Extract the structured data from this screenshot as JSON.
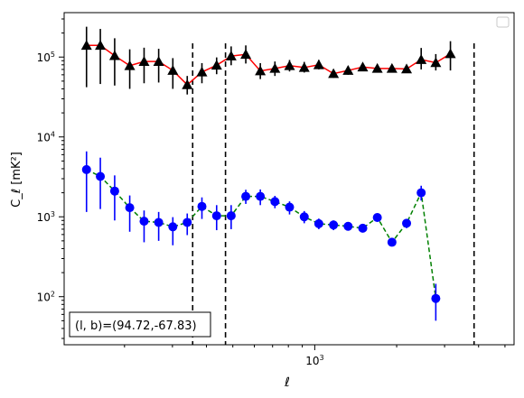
{
  "chart_data": {
    "type": "line",
    "xscale": "log",
    "yscale": "log",
    "xlim": [
      120,
      5400
    ],
    "ylim": [
      25,
      360000
    ],
    "xlabel": "ℓ",
    "ylabel": "C_ℓ  [mK²]",
    "x_tick_labels": [
      {
        "value": 1000,
        "base": "10",
        "exp": "3"
      }
    ],
    "y_tick_labels": [
      {
        "value": 100,
        "base": "10",
        "exp": "2"
      },
      {
        "value": 1000,
        "base": "10",
        "exp": "3"
      },
      {
        "value": 10000,
        "base": "10",
        "exp": "4"
      },
      {
        "value": 100000,
        "base": "10",
        "exp": "5"
      }
    ],
    "annotation": "(l, b)=(94.72,-67.83)",
    "vlines": [
      356,
      470,
      3850
    ],
    "legend": "upper-right (empty)",
    "grid": false,
    "series": [
      {
        "color": "#ff0000",
        "linestyle": "solid",
        "marker": "triangle",
        "marker_color": "#000000",
        "errbar_color": "#000000",
        "points": [
          {
            "x": 145,
            "y": 140000,
            "lo": 42000,
            "hi": 240000
          },
          {
            "x": 163,
            "y": 140000,
            "lo": 46000,
            "hi": 225000
          },
          {
            "x": 184,
            "y": 104000,
            "lo": 44000,
            "hi": 172000
          },
          {
            "x": 209,
            "y": 78000,
            "lo": 40000,
            "hi": 125000
          },
          {
            "x": 236,
            "y": 88000,
            "lo": 47000,
            "hi": 131000
          },
          {
            "x": 267,
            "y": 88000,
            "lo": 48000,
            "hi": 127000
          },
          {
            "x": 301,
            "y": 68000,
            "lo": 40000,
            "hi": 97000
          },
          {
            "x": 340,
            "y": 45000,
            "lo": 34000,
            "hi": 58000
          },
          {
            "x": 385,
            "y": 65000,
            "lo": 47000,
            "hi": 84000
          },
          {
            "x": 436,
            "y": 79000,
            "lo": 61000,
            "hi": 99000
          },
          {
            "x": 493,
            "y": 103000,
            "lo": 79000,
            "hi": 136000
          },
          {
            "x": 558,
            "y": 108000,
            "lo": 83000,
            "hi": 140000
          },
          {
            "x": 631,
            "y": 67000,
            "lo": 53000,
            "hi": 84000
          },
          {
            "x": 714,
            "y": 72000,
            "lo": 58000,
            "hi": 88000
          },
          {
            "x": 808,
            "y": 78000,
            "lo": 66000,
            "hi": 92000
          },
          {
            "x": 915,
            "y": 74000,
            "lo": 64000,
            "hi": 87000
          },
          {
            "x": 1035,
            "y": 80000,
            "lo": 70000,
            "hi": 92000
          },
          {
            "x": 1172,
            "y": 62000,
            "lo": 55000,
            "hi": 70000
          },
          {
            "x": 1326,
            "y": 68000,
            "lo": 60000,
            "hi": 77000
          },
          {
            "x": 1501,
            "y": 75000,
            "lo": 67000,
            "hi": 83000
          },
          {
            "x": 1698,
            "y": 72000,
            "lo": 64000,
            "hi": 80000
          },
          {
            "x": 1922,
            "y": 72000,
            "lo": 64000,
            "hi": 80000
          },
          {
            "x": 2175,
            "y": 71000,
            "lo": 63000,
            "hi": 79000
          },
          {
            "x": 2461,
            "y": 93000,
            "lo": 70000,
            "hi": 130000
          },
          {
            "x": 2785,
            "y": 85000,
            "lo": 68000,
            "hi": 109000
          },
          {
            "x": 3152,
            "y": 110000,
            "lo": 68000,
            "hi": 158000
          }
        ]
      },
      {
        "color": "#008000",
        "linestyle": "dashed",
        "marker": "circle",
        "marker_color": "#0000ff",
        "errbar_color": "#0000ff",
        "points": [
          {
            "x": 145,
            "y": 3900,
            "lo": 1150,
            "hi": 6600
          },
          {
            "x": 163,
            "y": 3200,
            "lo": 1250,
            "hi": 5500
          },
          {
            "x": 184,
            "y": 2100,
            "lo": 900,
            "hi": 3300
          },
          {
            "x": 209,
            "y": 1300,
            "lo": 650,
            "hi": 1850
          },
          {
            "x": 236,
            "y": 880,
            "lo": 480,
            "hi": 1200
          },
          {
            "x": 267,
            "y": 850,
            "lo": 500,
            "hi": 1150
          },
          {
            "x": 301,
            "y": 750,
            "lo": 440,
            "hi": 990
          },
          {
            "x": 340,
            "y": 850,
            "lo": 590,
            "hi": 1100
          },
          {
            "x": 385,
            "y": 1350,
            "lo": 940,
            "hi": 1750
          },
          {
            "x": 436,
            "y": 1030,
            "lo": 680,
            "hi": 1400
          },
          {
            "x": 493,
            "y": 1030,
            "lo": 700,
            "hi": 1400
          },
          {
            "x": 558,
            "y": 1800,
            "lo": 1450,
            "hi": 2180
          },
          {
            "x": 631,
            "y": 1800,
            "lo": 1400,
            "hi": 2200
          },
          {
            "x": 714,
            "y": 1550,
            "lo": 1280,
            "hi": 1830
          },
          {
            "x": 808,
            "y": 1320,
            "lo": 1070,
            "hi": 1560
          },
          {
            "x": 915,
            "y": 1000,
            "lo": 830,
            "hi": 1180
          },
          {
            "x": 1035,
            "y": 820,
            "lo": 700,
            "hi": 950
          },
          {
            "x": 1172,
            "y": 790,
            "lo": 680,
            "hi": 900
          },
          {
            "x": 1326,
            "y": 760,
            "lo": 680,
            "hi": 840
          },
          {
            "x": 1501,
            "y": 720,
            "lo": 640,
            "hi": 800
          },
          {
            "x": 1698,
            "y": 980,
            "lo": 900,
            "hi": 1060
          },
          {
            "x": 1922,
            "y": 480,
            "lo": 440,
            "hi": 520
          },
          {
            "x": 2175,
            "y": 830,
            "lo": 720,
            "hi": 940
          },
          {
            "x": 2461,
            "y": 2000,
            "lo": 1600,
            "hi": 2450
          },
          {
            "x": 2785,
            "y": 95,
            "lo": 50,
            "hi": 145
          }
        ]
      }
    ]
  }
}
